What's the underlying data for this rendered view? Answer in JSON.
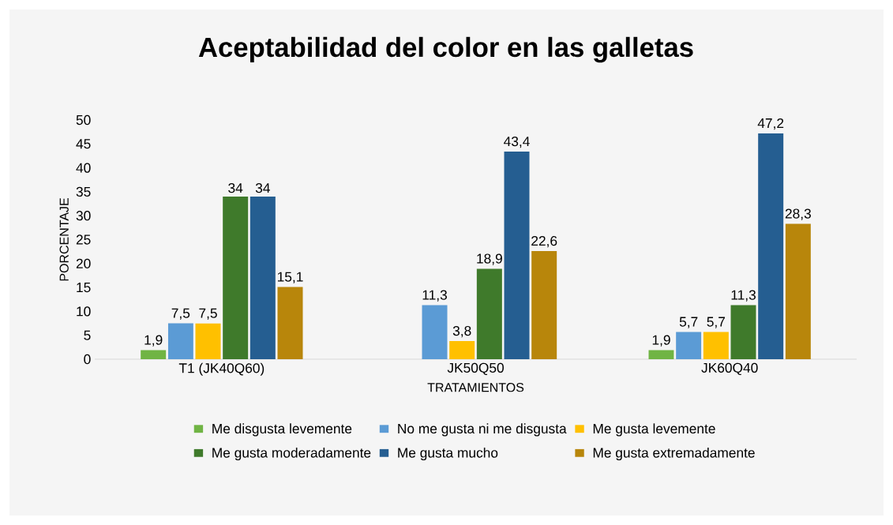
{
  "chart_data": {
    "type": "bar",
    "title": "Aceptabilidad del color en las galletas",
    "xlabel": "TRATAMIENTOS",
    "ylabel": "PORCENTAJE",
    "categories": [
      "T1 (JK40Q60)",
      "JK50Q50",
      "JK60Q40"
    ],
    "series": [
      {
        "name": "Me disgusta levemente",
        "color": "#70b444",
        "values": [
          1.9,
          0,
          1.9
        ],
        "value_labels": [
          "1,9",
          null,
          "1,9"
        ]
      },
      {
        "name": "No me gusta ni me disgusta",
        "color": "#5b9bd5",
        "values": [
          7.5,
          11.3,
          5.7
        ],
        "value_labels": [
          "7,5",
          "11,3",
          "5,7"
        ]
      },
      {
        "name": "Me gusta levemente",
        "color": "#ffc000",
        "values": [
          7.5,
          3.8,
          5.7
        ],
        "value_labels": [
          "7,5",
          "3,8",
          "5,7"
        ]
      },
      {
        "name": "Me gusta moderadamente",
        "color": "#3f7a2b",
        "values": [
          34,
          18.9,
          11.3
        ],
        "value_labels": [
          "34",
          "18,9",
          "11,3"
        ]
      },
      {
        "name": "Me gusta mucho",
        "color": "#255e91",
        "values": [
          34,
          43.4,
          47.2
        ],
        "value_labels": [
          "34",
          "43,4",
          "47,2"
        ]
      },
      {
        "name": "Me gusta extremadamente",
        "color": "#b8860b",
        "values": [
          15.1,
          22.6,
          28.3
        ],
        "value_labels": [
          "15,1",
          "22,6",
          "28,3"
        ]
      }
    ],
    "ylim": [
      0,
      50
    ],
    "yticks": [
      0,
      5,
      10,
      15,
      20,
      25,
      30,
      35,
      40,
      45,
      50
    ],
    "grid": false,
    "legend": "bottom"
  }
}
